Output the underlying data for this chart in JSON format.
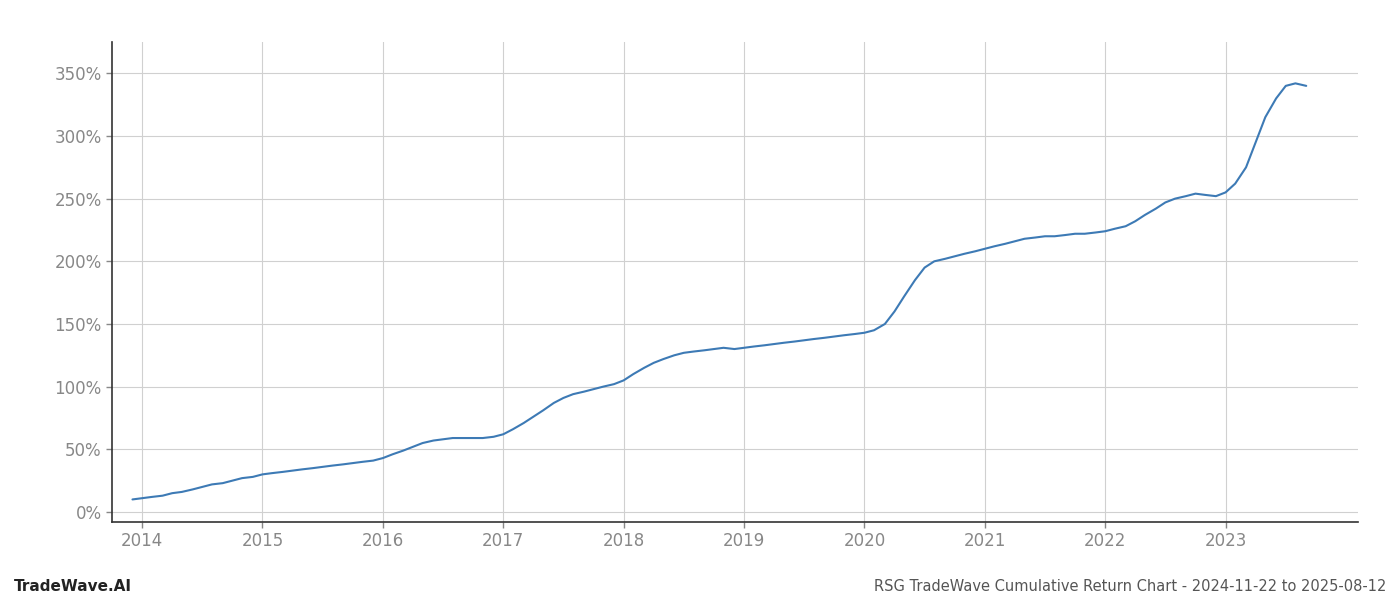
{
  "title": "RSG TradeWave Cumulative Return Chart - 2024-11-22 to 2025-08-12",
  "watermark": "TradeWave.AI",
  "line_color": "#3d7ab5",
  "background_color": "#ffffff",
  "grid_color": "#d0d0d0",
  "x_years": [
    2014,
    2015,
    2016,
    2017,
    2018,
    2019,
    2020,
    2021,
    2022,
    2023
  ],
  "x_data": [
    2013.92,
    2014.0,
    2014.08,
    2014.17,
    2014.25,
    2014.33,
    2014.42,
    2014.5,
    2014.58,
    2014.67,
    2014.75,
    2014.83,
    2014.92,
    2015.0,
    2015.08,
    2015.17,
    2015.25,
    2015.33,
    2015.42,
    2015.5,
    2015.58,
    2015.67,
    2015.75,
    2015.83,
    2015.92,
    2016.0,
    2016.08,
    2016.17,
    2016.25,
    2016.33,
    2016.42,
    2016.5,
    2016.58,
    2016.67,
    2016.75,
    2016.83,
    2016.92,
    2017.0,
    2017.08,
    2017.17,
    2017.25,
    2017.33,
    2017.42,
    2017.5,
    2017.58,
    2017.67,
    2017.75,
    2017.83,
    2017.92,
    2018.0,
    2018.08,
    2018.17,
    2018.25,
    2018.33,
    2018.42,
    2018.5,
    2018.58,
    2018.67,
    2018.75,
    2018.83,
    2018.92,
    2019.0,
    2019.08,
    2019.17,
    2019.25,
    2019.33,
    2019.42,
    2019.5,
    2019.58,
    2019.67,
    2019.75,
    2019.83,
    2019.92,
    2020.0,
    2020.08,
    2020.17,
    2020.25,
    2020.33,
    2020.42,
    2020.5,
    2020.58,
    2020.67,
    2020.75,
    2020.83,
    2020.92,
    2021.0,
    2021.08,
    2021.17,
    2021.25,
    2021.33,
    2021.42,
    2021.5,
    2021.58,
    2021.67,
    2021.75,
    2021.83,
    2021.92,
    2022.0,
    2022.08,
    2022.17,
    2022.25,
    2022.33,
    2022.42,
    2022.5,
    2022.58,
    2022.67,
    2022.75,
    2022.83,
    2022.92,
    2023.0,
    2023.08,
    2023.17,
    2023.25,
    2023.33,
    2023.42,
    2023.5,
    2023.58,
    2023.67
  ],
  "y_data": [
    10,
    11,
    12,
    13,
    15,
    16,
    18,
    20,
    22,
    23,
    25,
    27,
    28,
    30,
    31,
    32,
    33,
    34,
    35,
    36,
    37,
    38,
    39,
    40,
    41,
    43,
    46,
    49,
    52,
    55,
    57,
    58,
    59,
    59,
    59,
    59,
    60,
    62,
    66,
    71,
    76,
    81,
    87,
    91,
    94,
    96,
    98,
    100,
    102,
    105,
    110,
    115,
    119,
    122,
    125,
    127,
    128,
    129,
    130,
    131,
    130,
    131,
    132,
    133,
    134,
    135,
    136,
    137,
    138,
    139,
    140,
    141,
    142,
    143,
    145,
    150,
    160,
    172,
    185,
    195,
    200,
    202,
    204,
    206,
    208,
    210,
    212,
    214,
    216,
    218,
    219,
    220,
    220,
    221,
    222,
    222,
    223,
    224,
    226,
    228,
    232,
    237,
    242,
    247,
    250,
    252,
    254,
    253,
    252,
    255,
    262,
    275,
    295,
    315,
    330,
    340,
    342,
    340
  ],
  "ylim": [
    -8,
    375
  ],
  "yticks": [
    0,
    50,
    100,
    150,
    200,
    250,
    300,
    350
  ],
  "xlim": [
    2013.75,
    2024.1
  ],
  "title_fontsize": 10.5,
  "watermark_fontsize": 11,
  "tick_fontsize": 12,
  "title_color": "#555555",
  "watermark_color": "#222222",
  "tick_color": "#888888",
  "left_spine_color": "#333333",
  "bottom_spine_color": "#333333",
  "line_width": 1.5
}
